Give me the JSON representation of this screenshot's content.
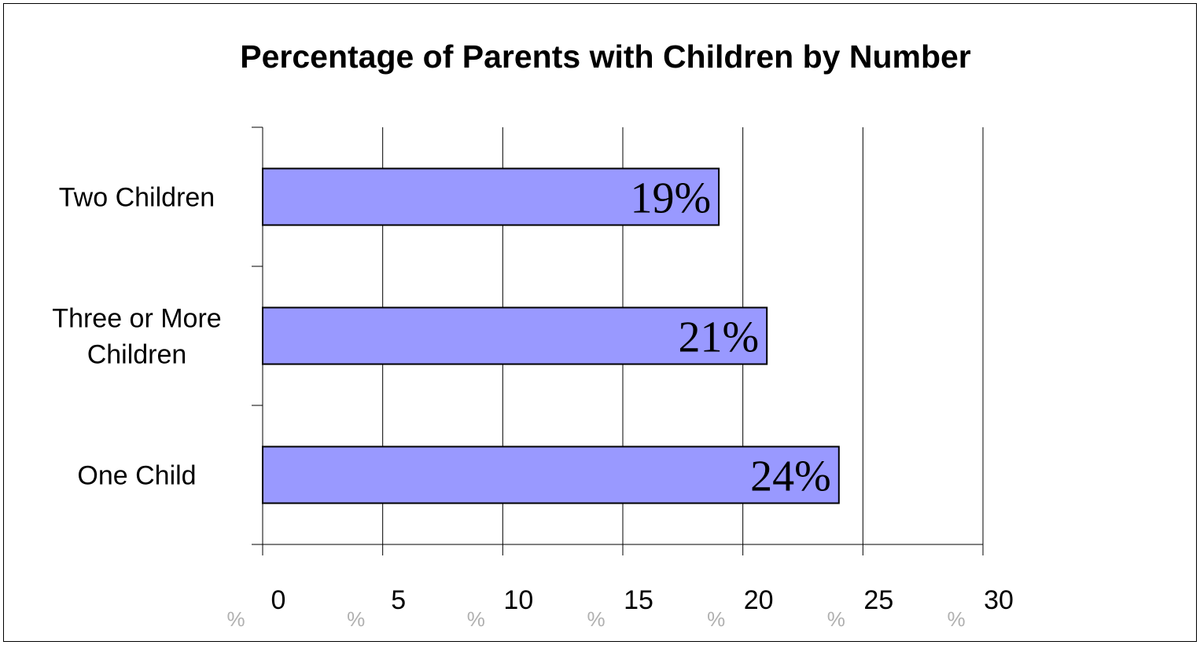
{
  "chart_data": {
    "type": "bar",
    "orientation": "horizontal",
    "title": "Percentage of Parents with Children by Number",
    "categories": [
      "Two Children",
      "Three or More Children",
      "One Child"
    ],
    "category_lines": [
      [
        "Two Children"
      ],
      [
        "Three or More",
        "Children"
      ],
      [
        "One Child"
      ]
    ],
    "values": [
      19,
      21,
      24
    ],
    "data_labels": [
      "19%",
      "21%",
      "24%"
    ],
    "xlim": [
      0,
      30
    ],
    "x_ticks": [
      0,
      5,
      10,
      15,
      20,
      25,
      30
    ],
    "x_tick_labels": [
      "0",
      "5",
      "10",
      "15",
      "20",
      "25",
      "30"
    ],
    "x_tick_suffix": "%",
    "grid": "vertical",
    "legend": "none",
    "bar_color": "#9999ff",
    "bar_edge_color": "#000000"
  }
}
